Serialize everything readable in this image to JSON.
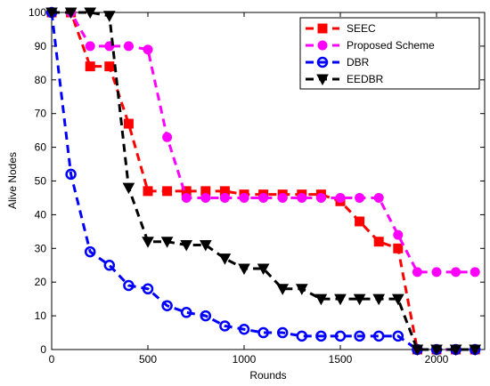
{
  "chart_data": {
    "type": "line",
    "xlabel": "Rounds",
    "ylabel": "Alive Nodes",
    "xlim": [
      0,
      2250
    ],
    "ylim": [
      0,
      100
    ],
    "xticks": [
      0,
      500,
      1000,
      1500,
      2000
    ],
    "yticks": [
      0,
      10,
      20,
      30,
      40,
      50,
      60,
      70,
      80,
      90,
      100
    ],
    "grid": false,
    "legend_position": "top-right",
    "series": [
      {
        "name": "SEEC",
        "color": "#ff0000",
        "marker": "square",
        "x": [
          0,
          100,
          200,
          300,
          400,
          500,
          600,
          700,
          800,
          900,
          1000,
          1100,
          1200,
          1300,
          1400,
          1500,
          1600,
          1700,
          1800,
          1900,
          2000,
          2100,
          2200
        ],
        "y": [
          100,
          100,
          84,
          84,
          67,
          47,
          47,
          47,
          47,
          47,
          46,
          46,
          46,
          46,
          46,
          44,
          38,
          32,
          30,
          0,
          0,
          0,
          0
        ]
      },
      {
        "name": "Proposed Scheme",
        "color": "#ff00ff",
        "marker": "circle",
        "x": [
          0,
          100,
          200,
          300,
          400,
          500,
          600,
          700,
          800,
          900,
          1000,
          1100,
          1200,
          1300,
          1400,
          1500,
          1600,
          1700,
          1800,
          1900,
          2000,
          2100,
          2200
        ],
        "y": [
          100,
          100,
          90,
          90,
          90,
          89,
          63,
          45,
          45,
          45,
          45,
          45,
          45,
          45,
          45,
          45,
          45,
          45,
          34,
          23,
          23,
          23,
          23
        ]
      },
      {
        "name": "DBR",
        "color": "#0000ff",
        "marker": "circle-open",
        "x": [
          0,
          100,
          200,
          300,
          400,
          500,
          600,
          700,
          800,
          900,
          1000,
          1100,
          1200,
          1300,
          1400,
          1500,
          1600,
          1700,
          1800,
          1900,
          2000,
          2100,
          2200
        ],
        "y": [
          100,
          52,
          29,
          25,
          19,
          18,
          13,
          11,
          10,
          7,
          6,
          5,
          5,
          4,
          4,
          4,
          4,
          4,
          4,
          0,
          0,
          0,
          0
        ]
      },
      {
        "name": "EEDBR",
        "color": "#000000",
        "marker": "triangle-down",
        "x": [
          0,
          100,
          200,
          300,
          400,
          500,
          600,
          700,
          800,
          900,
          1000,
          1100,
          1200,
          1300,
          1400,
          1500,
          1600,
          1700,
          1800,
          1900,
          2000,
          2100,
          2200
        ],
        "y": [
          100,
          100,
          100,
          99,
          48,
          32,
          32,
          31,
          31,
          27,
          24,
          24,
          18,
          18,
          15,
          15,
          15,
          15,
          15,
          0,
          0,
          0,
          0
        ]
      }
    ]
  }
}
